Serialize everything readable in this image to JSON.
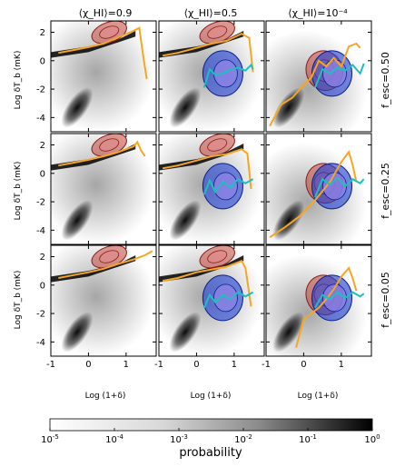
{
  "chart_data": {
    "type": "heatmap",
    "layout": "3x3 grid of panels",
    "column_titles": [
      "⟨χ_HI⟩=0.9",
      "⟨χ_HI⟩=0.5",
      "⟨χ_HI⟩=10⁻⁴"
    ],
    "row_titles": [
      "f_esc=0.50",
      "f_esc=0.25",
      "f_esc=0.05"
    ],
    "xlabel": "Log (1+δ)",
    "ylabel": "Log δT_b (mK)",
    "xlim": [
      -1,
      1.8
    ],
    "ylim": [
      -5,
      2.8
    ],
    "x_ticks": [
      "-1",
      "0",
      "1"
    ],
    "y_ticks": [
      "2",
      "0",
      "-2",
      "-4"
    ],
    "colorbar": {
      "label": "probability",
      "scale": "log",
      "range": [
        1e-05,
        1
      ],
      "tick_labels": [
        "10-5",
        "10-4",
        "10-3",
        "10-2",
        "10-1",
        "100"
      ],
      "tick_bases": [
        "10",
        "10",
        "10",
        "10",
        "10",
        "10"
      ],
      "tick_exponents": [
        "-5",
        "-4",
        "-3",
        "-2",
        "-1",
        "0"
      ]
    },
    "colors": {
      "histogram": "#000000",
      "median_curve": "#f5a623",
      "red_contours": "#c0392b",
      "blue_contours": "#1f3fd6",
      "cyan_curve": "#1fbfbf"
    },
    "panels": [
      {
        "row": 0,
        "col": 0,
        "median_curve": [
          [
            -0.8,
            0.55
          ],
          [
            -0.4,
            0.75
          ],
          [
            0,
            0.95
          ],
          [
            0.4,
            1.2
          ],
          [
            0.8,
            1.65
          ],
          [
            1.2,
            2.1
          ],
          [
            1.35,
            2.3
          ],
          [
            1.45,
            0.4
          ],
          [
            1.55,
            -1.3
          ]
        ],
        "blue_contours": false,
        "cyan_curve": []
      },
      {
        "row": 0,
        "col": 1,
        "median_curve": [
          [
            -0.9,
            0.35
          ],
          [
            -0.5,
            0.55
          ],
          [
            0,
            0.9
          ],
          [
            0.4,
            1.2
          ],
          [
            0.8,
            1.4
          ],
          [
            1.2,
            1.9
          ],
          [
            1.4,
            1.6
          ],
          [
            1.5,
            -0.8
          ]
        ],
        "blue_contours": true,
        "cyan_curve": [
          [
            0.2,
            -1.9
          ],
          [
            0.35,
            -0.6
          ],
          [
            0.5,
            -1.0
          ],
          [
            0.7,
            -0.9
          ],
          [
            0.9,
            -0.6
          ],
          [
            1.1,
            -0.5
          ],
          [
            1.3,
            -0.7
          ],
          [
            1.45,
            -0.3
          ],
          [
            1.5,
            -0.6
          ]
        ]
      },
      {
        "row": 0,
        "col": 2,
        "median_curve": [
          [
            -0.9,
            -4.6
          ],
          [
            -0.6,
            -3.1
          ],
          [
            -0.3,
            -2.6
          ],
          [
            0,
            -1.7
          ],
          [
            0.2,
            -1.2
          ],
          [
            0.4,
            0
          ],
          [
            0.6,
            -0.4
          ],
          [
            0.8,
            0.2
          ],
          [
            1.0,
            -0.4
          ],
          [
            1.2,
            1.0
          ],
          [
            1.4,
            1.2
          ],
          [
            1.5,
            0.9
          ]
        ],
        "blue_contours": true,
        "cyan_curve": [
          [
            0.3,
            -1.9
          ],
          [
            0.5,
            -0.6
          ],
          [
            0.7,
            -0.9
          ],
          [
            0.9,
            -0.5
          ],
          [
            1.1,
            -0.7
          ],
          [
            1.3,
            -0.3
          ],
          [
            1.5,
            -0.9
          ],
          [
            1.6,
            -0.2
          ]
        ]
      },
      {
        "row": 1,
        "col": 0,
        "median_curve": [
          [
            -0.8,
            0.55
          ],
          [
            -0.4,
            0.75
          ],
          [
            0,
            0.95
          ],
          [
            0.4,
            1.2
          ],
          [
            0.8,
            1.5
          ],
          [
            1.2,
            1.9
          ],
          [
            1.3,
            2.2
          ],
          [
            1.4,
            1.6
          ],
          [
            1.5,
            1.2
          ]
        ],
        "blue_contours": false,
        "cyan_curve": []
      },
      {
        "row": 1,
        "col": 1,
        "median_curve": [
          [
            -0.9,
            0.35
          ],
          [
            -0.5,
            0.55
          ],
          [
            0,
            0.9
          ],
          [
            0.4,
            1.2
          ],
          [
            0.8,
            1.35
          ],
          [
            1.2,
            1.7
          ],
          [
            1.35,
            1.4
          ],
          [
            1.45,
            -1.1
          ]
        ],
        "blue_contours": true,
        "cyan_curve": [
          [
            0.2,
            -1.5
          ],
          [
            0.35,
            -0.5
          ],
          [
            0.5,
            -1.3
          ],
          [
            0.7,
            -0.6
          ],
          [
            0.9,
            -1.0
          ],
          [
            1.1,
            -0.4
          ],
          [
            1.3,
            -0.7
          ],
          [
            1.5,
            -0.4
          ]
        ]
      },
      {
        "row": 1,
        "col": 2,
        "median_curve": [
          [
            -0.9,
            -4.5
          ],
          [
            -0.5,
            -3.8
          ],
          [
            -0.1,
            -3.0
          ],
          [
            0.3,
            -1.9
          ],
          [
            0.7,
            -0.6
          ],
          [
            1.0,
            0.8
          ],
          [
            1.2,
            1.5
          ],
          [
            1.3,
            0.6
          ],
          [
            1.4,
            -0.6
          ]
        ],
        "blue_contours": true,
        "cyan_curve": [
          [
            0.3,
            -1.7
          ],
          [
            0.5,
            -0.4
          ],
          [
            0.7,
            -0.8
          ],
          [
            0.9,
            -0.3
          ],
          [
            1.1,
            -0.9
          ],
          [
            1.3,
            -0.4
          ],
          [
            1.5,
            -0.7
          ],
          [
            1.6,
            -0.4
          ]
        ]
      },
      {
        "row": 2,
        "col": 0,
        "median_curve": [
          [
            -0.8,
            0.5
          ],
          [
            -0.4,
            0.7
          ],
          [
            0,
            0.9
          ],
          [
            0.4,
            1.15
          ],
          [
            0.8,
            1.5
          ],
          [
            1.2,
            1.8
          ],
          [
            1.5,
            2.1
          ],
          [
            1.7,
            2.4
          ]
        ],
        "blue_contours": false,
        "cyan_curve": []
      },
      {
        "row": 2,
        "col": 1,
        "median_curve": [
          [
            -0.9,
            0.3
          ],
          [
            -0.5,
            0.5
          ],
          [
            0,
            0.9
          ],
          [
            0.4,
            1.1
          ],
          [
            0.8,
            1.3
          ],
          [
            1.2,
            1.7
          ],
          [
            1.3,
            1.2
          ],
          [
            1.45,
            -1.5
          ]
        ],
        "blue_contours": true,
        "cyan_curve": [
          [
            0.2,
            -1.6
          ],
          [
            0.35,
            -0.7
          ],
          [
            0.5,
            -1.2
          ],
          [
            0.7,
            -0.7
          ],
          [
            0.9,
            -1.0
          ],
          [
            1.1,
            -0.5
          ],
          [
            1.3,
            -0.8
          ],
          [
            1.5,
            -0.5
          ]
        ]
      },
      {
        "row": 2,
        "col": 2,
        "median_curve": [
          [
            -0.2,
            -4.4
          ],
          [
            0,
            -2.4
          ],
          [
            0.2,
            -2.0
          ],
          [
            0.4,
            -1.6
          ],
          [
            0.6,
            -1.0
          ],
          [
            0.8,
            -0.3
          ],
          [
            1.0,
            0.6
          ],
          [
            1.2,
            1.2
          ],
          [
            1.3,
            0.5
          ],
          [
            1.4,
            -0.4
          ]
        ],
        "blue_contours": true,
        "cyan_curve": [
          [
            0.3,
            -1.6
          ],
          [
            0.5,
            -0.7
          ],
          [
            0.7,
            -1.0
          ],
          [
            0.9,
            -0.5
          ],
          [
            1.1,
            -0.9
          ],
          [
            1.3,
            -0.5
          ],
          [
            1.5,
            -0.8
          ],
          [
            1.6,
            -0.6
          ]
        ]
      }
    ]
  }
}
